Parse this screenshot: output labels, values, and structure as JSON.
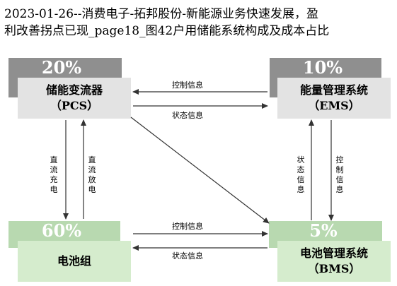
{
  "caption": {
    "line1": "2023-01-26--消费电子-拓邦股份-新能源业务快速发展，盈",
    "line2": "利改善拐点已现_page18_图42户用储能系统构成及成本占比"
  },
  "nodes": {
    "pcs": {
      "percent": "20%",
      "line1": "储能变流器",
      "line2": "（PCS）"
    },
    "ems": {
      "percent": "10%",
      "line1": "能量管理系统",
      "line2": "（EMS）"
    },
    "battery": {
      "percent": "60%",
      "line1": "电池组"
    },
    "bms": {
      "percent": "5%",
      "line1": "电池管理系统",
      "line2": "（BMS）"
    }
  },
  "arrows": {
    "pcs_ems_control": "控制信息",
    "pcs_ems_status": "状态信息",
    "battery_bms_control": "控制信息",
    "battery_bms_status": "状态信息",
    "dc_charge": "直流充电",
    "dc_discharge": "直流放电",
    "bms_ems_status": "状态信息",
    "ems_bms_control": "控制信息"
  },
  "colors": {
    "grey_top": "#8f8f8f",
    "grey_box": "#e3e3e3",
    "green_top": "#b8d9b0",
    "green_box": "#d5eccd",
    "arrow": "#333333"
  }
}
